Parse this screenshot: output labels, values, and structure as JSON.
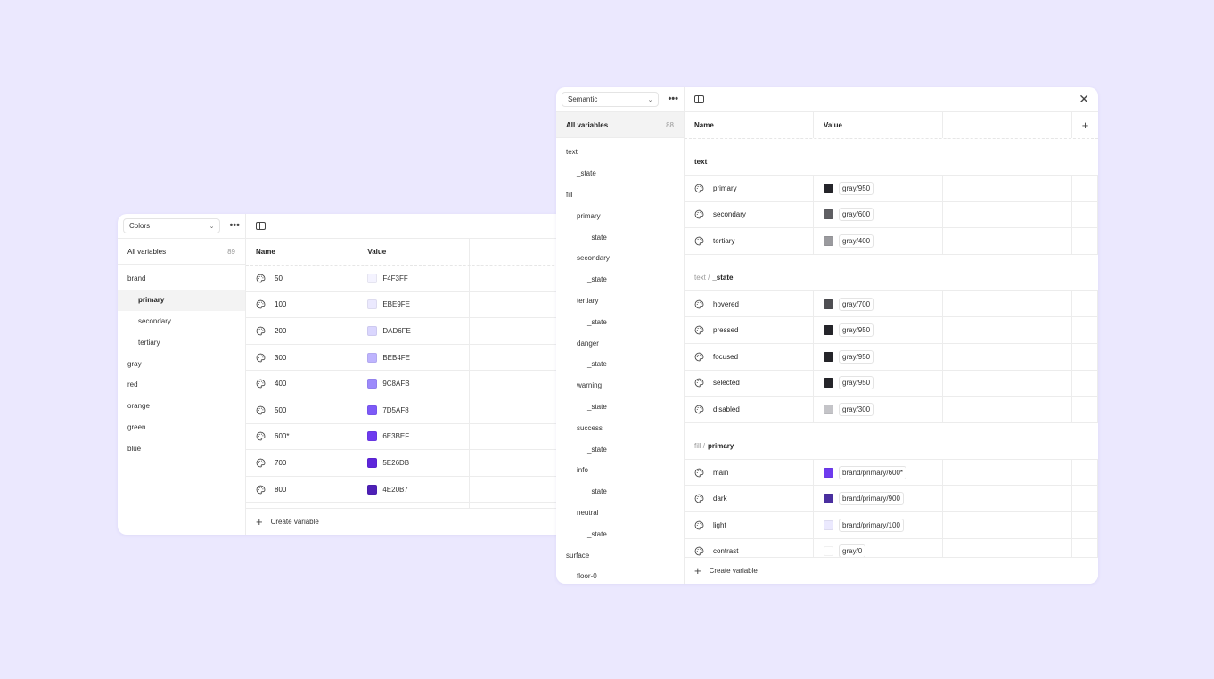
{
  "colors_panel": {
    "collection_select": "Colors",
    "all_variables_label": "All variables",
    "all_variables_count": "89",
    "groups": [
      {
        "label": "brand",
        "level": 0,
        "selected": false
      },
      {
        "label": "primary",
        "level": 1,
        "selected": true
      },
      {
        "label": "secondary",
        "level": 1,
        "selected": false
      },
      {
        "label": "tertiary",
        "level": 1,
        "selected": false
      },
      {
        "label": "gray",
        "level": 0,
        "selected": false
      },
      {
        "label": "red",
        "level": 0,
        "selected": false
      },
      {
        "label": "orange",
        "level": 0,
        "selected": false
      },
      {
        "label": "green",
        "level": 0,
        "selected": false
      },
      {
        "label": "blue",
        "level": 0,
        "selected": false
      }
    ],
    "columns": {
      "name": "Name",
      "value": "Value"
    },
    "rows": [
      {
        "name": "50",
        "value": "F4F3FF",
        "color": "#F4F3FF"
      },
      {
        "name": "100",
        "value": "EBE9FE",
        "color": "#EBE9FE"
      },
      {
        "name": "200",
        "value": "DAD6FE",
        "color": "#DAD6FE"
      },
      {
        "name": "300",
        "value": "BEB4FE",
        "color": "#BEB4FE"
      },
      {
        "name": "400",
        "value": "9C8AFB",
        "color": "#9C8AFB"
      },
      {
        "name": "500",
        "value": "7D5AF8",
        "color": "#7D5AF8"
      },
      {
        "name": "600*",
        "value": "6E3BEF",
        "color": "#6E3BEF"
      },
      {
        "name": "700",
        "value": "5E26DB",
        "color": "#5E26DB"
      },
      {
        "name": "800",
        "value": "4E20B7",
        "color": "#4E20B7"
      }
    ],
    "create_label": "Create variable"
  },
  "semantic_panel": {
    "collection_select": "Semantic",
    "all_variables_label": "All variables",
    "all_variables_count": "88",
    "groups": [
      {
        "label": "text",
        "level": 0
      },
      {
        "label": "_state",
        "level": 1
      },
      {
        "label": "fill",
        "level": 0
      },
      {
        "label": "primary",
        "level": 1
      },
      {
        "label": "_state",
        "level": 2
      },
      {
        "label": "secondary",
        "level": 1
      },
      {
        "label": "_state",
        "level": 2
      },
      {
        "label": "tertiary",
        "level": 1
      },
      {
        "label": "_state",
        "level": 2
      },
      {
        "label": "danger",
        "level": 1
      },
      {
        "label": "_state",
        "level": 2
      },
      {
        "label": "warning",
        "level": 1
      },
      {
        "label": "_state",
        "level": 2
      },
      {
        "label": "success",
        "level": 1
      },
      {
        "label": "_state",
        "level": 2
      },
      {
        "label": "info",
        "level": 1
      },
      {
        "label": "_state",
        "level": 2
      },
      {
        "label": "neutral",
        "level": 1
      },
      {
        "label": "_state",
        "level": 2
      },
      {
        "label": "surface",
        "level": 0
      },
      {
        "label": "floor-0",
        "level": 1
      }
    ],
    "columns": {
      "name": "Name",
      "value": "Value"
    },
    "sections": [
      {
        "prefix": "",
        "title": "text",
        "rows": [
          {
            "name": "primary",
            "value": "gray/950",
            "color": "#25252a"
          },
          {
            "name": "secondary",
            "value": "gray/600",
            "color": "#5f5f63"
          },
          {
            "name": "tertiary",
            "value": "gray/400",
            "color": "#9a9a9e"
          }
        ]
      },
      {
        "prefix": "text /",
        "title": "_state",
        "rows": [
          {
            "name": "hovered",
            "value": "gray/700",
            "color": "#4f4f53"
          },
          {
            "name": "pressed",
            "value": "gray/950",
            "color": "#25252a"
          },
          {
            "name": "focused",
            "value": "gray/950",
            "color": "#25252a"
          },
          {
            "name": "selected",
            "value": "gray/950",
            "color": "#25252a"
          },
          {
            "name": "disabled",
            "value": "gray/300",
            "color": "#c4c4c8"
          }
        ]
      },
      {
        "prefix": "fill /",
        "title": "primary",
        "rows": [
          {
            "name": "main",
            "value": "brand/primary/600*",
            "color": "#6E3BEF"
          },
          {
            "name": "dark",
            "value": "brand/primary/900",
            "color": "#4a2fa0"
          },
          {
            "name": "light",
            "value": "brand/primary/100",
            "color": "#EBE9FE"
          },
          {
            "name": "contrast",
            "value": "gray/0",
            "color": "#ffffff"
          }
        ]
      }
    ],
    "create_label": "Create variable"
  }
}
